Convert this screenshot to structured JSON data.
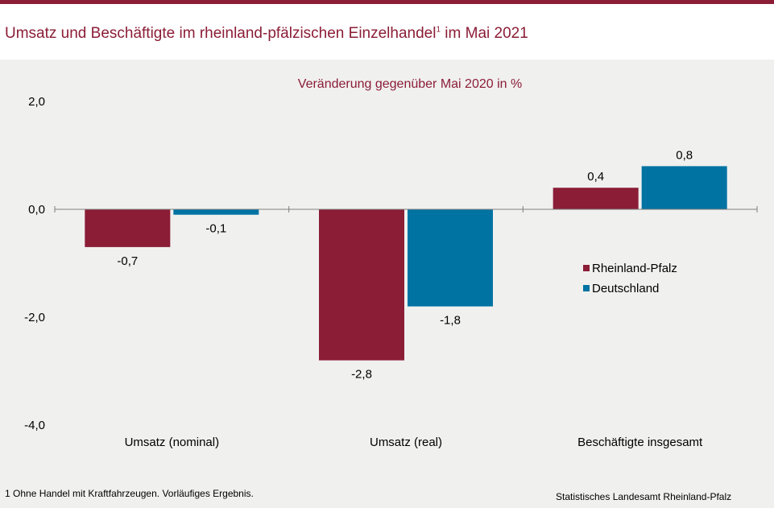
{
  "header": {
    "title_main": "Umsatz und Beschäftigte im rheinland-pfälzischen Einzelhandel",
    "title_sup": "1",
    "title_end": " im Mai 2021"
  },
  "footnote": "1 Ohne Handel mit Kraftfahrzeugen.  Vorläufiges Ergebnis.",
  "source": "Statistisches Landesamt Rheinland-Pfalz",
  "colors": {
    "accent": "#8b1d36",
    "rlp": "#8b1d36",
    "de": "#0073a3"
  },
  "chart_data": {
    "type": "bar",
    "title": "Veränderung gegenüber Mai 2020 in %",
    "categories": [
      "Umsatz (nominal)",
      "Umsatz (real)",
      "Beschäftigte insgesamt"
    ],
    "series": [
      {
        "name": "Rheinland-Pfalz",
        "values": [
          -0.7,
          -2.8,
          0.4
        ],
        "labels": [
          "-0,7",
          "-2,8",
          "0,4"
        ]
      },
      {
        "name": "Deutschland",
        "values": [
          -0.1,
          -1.8,
          0.8
        ],
        "labels": [
          "-0,1",
          "-1,8",
          "0,8"
        ]
      }
    ],
    "yticks": [
      "2,0",
      "0,0",
      "-2,0",
      "-4,0"
    ],
    "ylim": [
      -4,
      2
    ],
    "legend": "right",
    "grid": false
  }
}
